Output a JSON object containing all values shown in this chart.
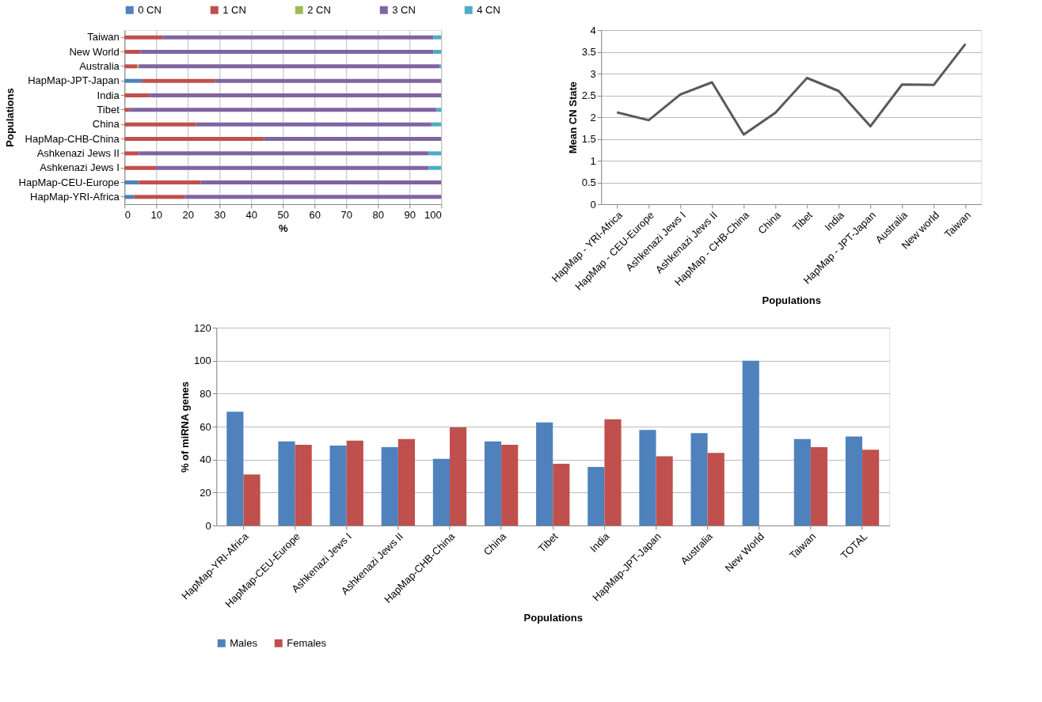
{
  "chart_data": [
    {
      "type": "bar",
      "orientation": "horizontal",
      "stacked": true,
      "xlabel": "%",
      "ylabel": "Populations",
      "categories": [
        "Taiwan",
        "New World",
        "Australia",
        "HapMap-JPT-Japan",
        "India",
        "Tibet",
        "China",
        "HapMap-CHB-China",
        "Ashkenazi Jews II",
        "Ashkenazi Jews I",
        "HapMap-CEU-Europe",
        "HapMap-YRI-Africa"
      ],
      "series": [
        {
          "name": "0 CN",
          "color": "#4f81bd",
          "values": [
            0,
            0,
            0,
            5.5,
            0,
            0,
            0,
            0,
            0,
            0,
            4.5,
            3
          ]
        },
        {
          "name": "1 CN",
          "color": "#c0504d",
          "values": [
            12,
            5,
            4,
            23,
            8,
            1.5,
            22.5,
            44,
            4.5,
            10,
            19.5,
            16
          ]
        },
        {
          "name": "2 CN",
          "color": "#9bbb59",
          "values": [
            0,
            0,
            0.5,
            0,
            0,
            0,
            0,
            0,
            0,
            0,
            0,
            0
          ]
        },
        {
          "name": "3 CN",
          "color": "#8064a2",
          "values": [
            85.5,
            92.5,
            95,
            71.5,
            92,
            97,
            74.5,
            56,
            91.5,
            86,
            76,
            81
          ]
        },
        {
          "name": "4 CN",
          "color": "#4bacc6",
          "values": [
            2.5,
            2.5,
            0.5,
            0,
            0,
            1.5,
            3,
            0,
            4,
            4,
            0,
            0
          ]
        }
      ],
      "xlim": [
        0,
        100
      ],
      "xticks": [
        0,
        10,
        20,
        30,
        40,
        50,
        60,
        70,
        80,
        90,
        100
      ],
      "grid": "x",
      "legend": "top"
    },
    {
      "type": "line",
      "xlabel": "Populations",
      "ylabel": "Mean CN State",
      "categories": [
        "HapMap - YRI-Africa",
        "HapMap - CEU-Europe",
        "Ashkenazi Jews I",
        "Ashkenazi Jews II",
        "HapMap - CHB-China",
        "China",
        "Tibet",
        "India",
        "HapMap - JPT-Japan",
        "Australia",
        "New world",
        "Taiwan"
      ],
      "series": [
        {
          "color": "#595959",
          "values": [
            2.11,
            1.93,
            2.52,
            2.8,
            1.6,
            2.1,
            2.9,
            2.6,
            1.79,
            2.75,
            2.74,
            3.68
          ]
        }
      ],
      "ylim": [
        0,
        4
      ],
      "yticks": [
        0,
        0.5,
        1,
        1.5,
        2,
        2.5,
        3,
        3.5,
        4
      ],
      "grid": "y",
      "marker": "none",
      "line_style": "solid"
    },
    {
      "type": "bar",
      "xlabel": "Populations",
      "ylabel": "% of miRNA genes",
      "categories": [
        "HapMap-YRI-Africa",
        "HapMap-CEU-Europe",
        "Ashkenazi Jews I",
        "Ashkenazi Jews II",
        "HapMap-CHB-China",
        "China",
        "Tibet",
        "India",
        "HapMap-JPT-Japan",
        "Australia",
        "New World",
        "Taiwan",
        "TOTAL"
      ],
      "series": [
        {
          "name": "Males",
          "color": "#4f81bd",
          "values": [
            69,
            51,
            48.5,
            47.5,
            40.5,
            51,
            62.5,
            35.5,
            58,
            56,
            100,
            52.5,
            54
          ]
        },
        {
          "name": "Females",
          "color": "#c0504d",
          "values": [
            31,
            49,
            51.5,
            52.5,
            59.5,
            49,
            37.5,
            64.5,
            42,
            44,
            null,
            47.5,
            46
          ]
        }
      ],
      "ylim": [
        0,
        120
      ],
      "yticks": [
        0,
        20,
        40,
        60,
        80,
        100,
        120
      ],
      "grid": "y",
      "legend": "bottom"
    }
  ]
}
